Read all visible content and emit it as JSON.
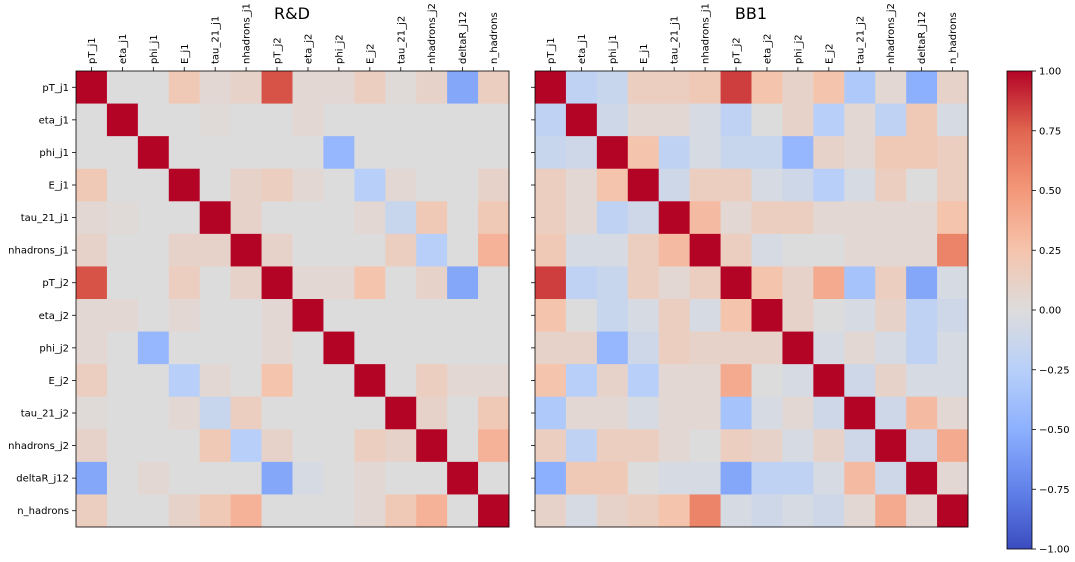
{
  "chart_data": {
    "type": "heatmap",
    "colormap": "coolwarm",
    "labels": [
      "pT_j1",
      "eta_j1",
      "phi_j1",
      "E_j1",
      "tau_21_j1",
      "nhadrons_j1",
      "pT_j2",
      "eta_j2",
      "phi_j2",
      "E_j2",
      "tau_21_j2",
      "nhadrons_j2",
      "deltaR_j12",
      "n_hadrons"
    ],
    "panels": [
      {
        "title": "R&D",
        "matrix": [
          [
            1.0,
            0.0,
            0.0,
            0.2,
            0.05,
            0.1,
            0.8,
            0.05,
            0.05,
            0.15,
            0.02,
            0.1,
            -0.55,
            0.15
          ],
          [
            0.0,
            1.0,
            0.0,
            0.0,
            0.02,
            0.0,
            0.0,
            0.05,
            0.0,
            0.0,
            0.0,
            0.0,
            0.0,
            0.0
          ],
          [
            0.0,
            0.0,
            1.0,
            0.0,
            0.0,
            0.0,
            0.0,
            0.0,
            -0.45,
            0.0,
            0.0,
            0.0,
            0.0,
            0.0
          ],
          [
            0.2,
            0.0,
            0.0,
            1.0,
            0.0,
            0.1,
            0.15,
            0.05,
            0.0,
            -0.25,
            0.05,
            0.0,
            0.0,
            0.1
          ],
          [
            0.05,
            0.02,
            0.0,
            0.0,
            1.0,
            0.1,
            0.0,
            0.0,
            0.0,
            0.05,
            -0.15,
            0.2,
            0.0,
            0.2
          ],
          [
            0.1,
            0.0,
            0.0,
            0.1,
            0.1,
            1.0,
            0.1,
            0.0,
            0.0,
            0.0,
            0.15,
            -0.25,
            0.0,
            0.35
          ],
          [
            0.8,
            0.0,
            0.0,
            0.15,
            0.0,
            0.1,
            1.0,
            0.05,
            0.05,
            0.25,
            0.0,
            0.1,
            -0.55,
            0.0
          ],
          [
            0.05,
            0.05,
            0.0,
            0.05,
            0.0,
            0.0,
            0.05,
            1.0,
            0.0,
            0.0,
            0.0,
            0.0,
            0.0,
            0.0
          ],
          [
            0.05,
            0.0,
            -0.45,
            0.0,
            0.0,
            0.0,
            0.05,
            0.0,
            1.0,
            0.0,
            0.0,
            0.0,
            0.0,
            0.0
          ],
          [
            0.15,
            0.0,
            0.0,
            -0.25,
            0.05,
            0.0,
            0.25,
            0.0,
            0.0,
            1.0,
            0.0,
            0.15,
            0.05,
            0.05
          ],
          [
            0.02,
            0.0,
            0.0,
            0.05,
            -0.15,
            0.15,
            0.0,
            0.0,
            0.0,
            0.0,
            1.0,
            0.1,
            0.0,
            0.2
          ],
          [
            0.1,
            0.0,
            0.0,
            0.0,
            0.2,
            -0.25,
            0.1,
            0.0,
            0.0,
            0.15,
            0.1,
            1.0,
            0.0,
            0.35
          ],
          [
            -0.55,
            0.0,
            0.05,
            0.0,
            0.0,
            0.0,
            -0.55,
            -0.05,
            0.0,
            0.05,
            0.0,
            0.0,
            1.0,
            0.0
          ],
          [
            0.15,
            0.0,
            0.0,
            0.1,
            0.2,
            0.35,
            0.0,
            0.0,
            0.0,
            0.05,
            0.2,
            0.35,
            0.0,
            1.0
          ]
        ]
      },
      {
        "title": "BB1",
        "matrix": [
          [
            1.0,
            -0.2,
            -0.15,
            0.15,
            0.15,
            0.2,
            0.85,
            0.25,
            0.1,
            0.25,
            -0.3,
            0.05,
            -0.5,
            0.1
          ],
          [
            -0.2,
            1.0,
            -0.1,
            0.05,
            0.05,
            -0.05,
            -0.2,
            0.0,
            0.1,
            -0.25,
            0.05,
            -0.2,
            0.2,
            -0.05
          ],
          [
            -0.15,
            -0.1,
            1.0,
            0.25,
            -0.2,
            -0.05,
            -0.15,
            -0.15,
            -0.45,
            0.1,
            0.05,
            0.2,
            0.2,
            0.15
          ],
          [
            0.15,
            0.05,
            0.25,
            1.0,
            -0.1,
            0.15,
            0.15,
            -0.05,
            -0.1,
            -0.25,
            -0.05,
            0.15,
            0.0,
            0.15
          ],
          [
            0.15,
            0.05,
            -0.2,
            -0.1,
            1.0,
            0.3,
            0.05,
            0.15,
            0.15,
            0.05,
            0.05,
            0.05,
            0.05,
            0.25
          ],
          [
            0.2,
            -0.05,
            -0.05,
            0.15,
            0.3,
            1.0,
            0.15,
            -0.05,
            0.0,
            0.0,
            0.05,
            0.05,
            0.05,
            0.6
          ],
          [
            0.85,
            -0.2,
            -0.15,
            0.15,
            0.05,
            0.15,
            1.0,
            0.25,
            0.1,
            0.4,
            -0.35,
            0.15,
            -0.55,
            -0.05
          ],
          [
            0.25,
            0.0,
            -0.15,
            -0.05,
            0.15,
            -0.05,
            0.25,
            1.0,
            0.1,
            0.0,
            -0.05,
            0.1,
            -0.2,
            -0.1
          ],
          [
            0.1,
            0.1,
            -0.45,
            -0.1,
            0.15,
            0.1,
            0.1,
            0.1,
            1.0,
            -0.05,
            0.05,
            -0.05,
            -0.2,
            -0.05
          ],
          [
            0.25,
            -0.25,
            0.1,
            -0.25,
            0.05,
            0.05,
            0.4,
            0.0,
            -0.05,
            1.0,
            -0.1,
            0.1,
            -0.05,
            -0.05
          ],
          [
            -0.3,
            0.05,
            0.05,
            -0.05,
            0.05,
            0.05,
            -0.35,
            -0.05,
            0.05,
            -0.1,
            1.0,
            -0.1,
            0.3,
            0.05
          ],
          [
            0.15,
            -0.2,
            0.15,
            0.15,
            0.05,
            0.0,
            0.15,
            0.1,
            -0.05,
            0.1,
            -0.1,
            1.0,
            -0.1,
            0.4
          ],
          [
            -0.5,
            0.2,
            0.2,
            0.0,
            -0.05,
            -0.05,
            -0.55,
            -0.2,
            -0.2,
            -0.05,
            0.3,
            -0.1,
            1.0,
            0.05
          ],
          [
            0.1,
            -0.05,
            0.1,
            0.15,
            0.25,
            0.6,
            -0.05,
            -0.1,
            -0.05,
            -0.1,
            0.05,
            0.4,
            0.05,
            1.0
          ]
        ]
      }
    ],
    "colorbar": {
      "vmin": -1.0,
      "vmax": 1.0,
      "ticks": [
        "1.00",
        "0.75",
        "0.50",
        "0.25",
        "0.00",
        "−0.25",
        "−0.50",
        "−0.75",
        "−1.00"
      ]
    }
  }
}
